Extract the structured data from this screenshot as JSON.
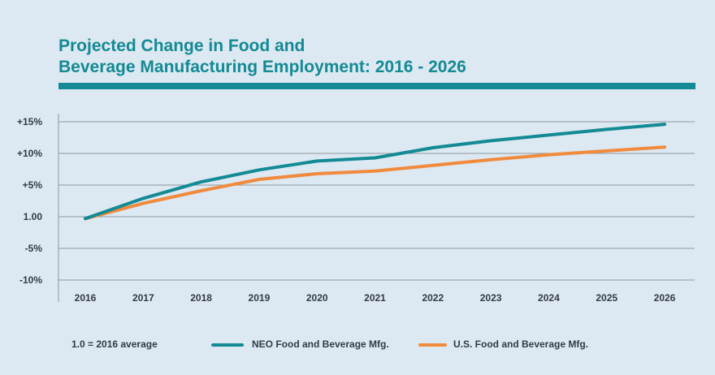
{
  "title_lines": [
    "Projected Change in Food and",
    "Beverage Manufacturing Employment: 2016 - 2026"
  ],
  "colors": {
    "accent": "#138a94",
    "neo": "#138a94",
    "us": "#f08a3c",
    "grid": "#8f979e",
    "text": "#333b44",
    "background": "#dce8f2"
  },
  "legend": {
    "note": "1.0 = 2016 average",
    "items": [
      {
        "label": "NEO Food and Beverage Mfg.",
        "color": "#138a94"
      },
      {
        "label": "U.S. Food and Beverage Mfg.",
        "color": "#f08a3c"
      }
    ]
  },
  "chart_data": {
    "type": "line",
    "title": "Projected Change in Food and Beverage Manufacturing Employment: 2016 - 2026",
    "categories": [
      "2016",
      "2017",
      "2018",
      "2019",
      "2020",
      "2021",
      "2022",
      "2023",
      "2024",
      "2025",
      "2026"
    ],
    "y_ticks": [
      {
        "value": 15,
        "label": "+15%"
      },
      {
        "value": 10,
        "label": "+10%"
      },
      {
        "value": 5,
        "label": "+5%"
      },
      {
        "value": 0,
        "label": "1.00"
      },
      {
        "value": -5,
        "label": "-5%"
      },
      {
        "value": -10,
        "label": "-10%"
      }
    ],
    "ylim": [
      -10,
      15
    ],
    "grid": true,
    "series": [
      {
        "name": "NEO Food and Beverage Mfg.",
        "color": "#138a94",
        "values": [
          -0.3,
          2.9,
          5.5,
          7.4,
          8.8,
          9.3,
          10.9,
          12.0,
          12.9,
          13.8,
          14.6
        ]
      },
      {
        "name": "U.S. Food and Beverage Mfg.",
        "color": "#f08a3c",
        "values": [
          -0.3,
          2.1,
          4.1,
          5.9,
          6.8,
          7.2,
          8.1,
          9.0,
          9.8,
          10.4,
          11.0
        ]
      }
    ]
  }
}
